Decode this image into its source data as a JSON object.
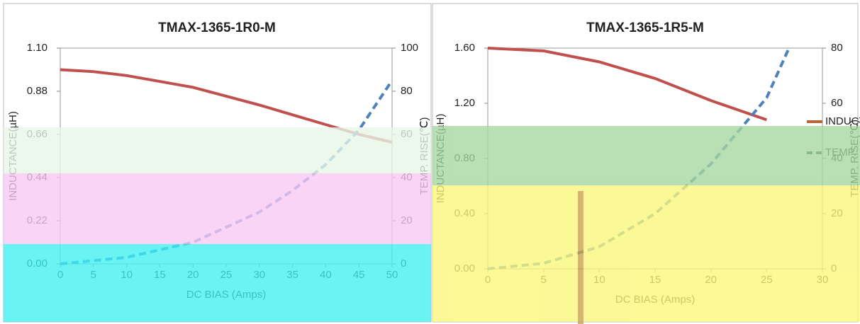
{
  "chart_data": [
    {
      "type": "line",
      "title": "TMAX-1365-1R0-M",
      "x_label": "DC BIAS (Amps)",
      "y_label": "INDUCTANCE(µH)",
      "y2_label": "TEMP. RISE(℃)",
      "xlim": [
        0,
        50
      ],
      "xticks": [
        0,
        5,
        10,
        15,
        20,
        25,
        30,
        35,
        40,
        45,
        50
      ],
      "ylim": [
        0,
        1.1
      ],
      "yticks": [
        {
          "value": 0,
          "label": "0.00"
        },
        {
          "value": 0.22,
          "label": "0.22"
        },
        {
          "value": 0.44,
          "label": "0.44"
        },
        {
          "value": 0.66,
          "label": "0.66"
        },
        {
          "value": 0.88,
          "label": "0.88"
        },
        {
          "value": 1.1,
          "label": "1.10"
        }
      ],
      "y2lim": [
        0,
        100
      ],
      "y2ticks": [
        0,
        20,
        40,
        60,
        80,
        100
      ],
      "series": [
        {
          "name": "INDUCTANCE(µH)",
          "color": "#c0504d",
          "x": [
            0,
            5,
            10,
            20,
            30,
            35,
            40,
            45,
            50
          ],
          "values": [
            0.99,
            0.98,
            0.96,
            0.9,
            0.81,
            0.76,
            0.71,
            0.66,
            0.62
          ]
        },
        {
          "name": "TEMP. RISE(℃)",
          "color": "#4f81bd",
          "axis": "y2",
          "dashed": true,
          "x": [
            0,
            10,
            20,
            30,
            35,
            40,
            45,
            50
          ],
          "values": [
            0,
            3,
            10,
            24,
            34,
            46,
            62,
            85
          ]
        }
      ]
    },
    {
      "type": "line",
      "title": "TMAX-1365-1R5-M",
      "x_label": "DC BIAS (Amps)",
      "y_label": "INDUCTANCE(µH)",
      "y2_label": "TEMP. RISE(℃)",
      "xlim": [
        0,
        30
      ],
      "xticks": [
        0,
        5,
        10,
        15,
        20,
        25,
        30
      ],
      "ylim": [
        0,
        1.6
      ],
      "yticks": [
        {
          "value": 0,
          "label": "0.00"
        },
        {
          "value": 0.4,
          "label": "0.40"
        },
        {
          "value": 0.8,
          "label": "0.80"
        },
        {
          "value": 1.2,
          "label": "1.20"
        },
        {
          "value": 1.6,
          "label": "1.60"
        }
      ],
      "y2lim": [
        0,
        80
      ],
      "y2ticks": [
        0,
        20,
        40,
        60,
        80
      ],
      "series": [
        {
          "name": "INDUCTANCE(µH)",
          "color": "#c0504d",
          "x": [
            0,
            5,
            10,
            15,
            20,
            25
          ],
          "values": [
            1.6,
            1.58,
            1.5,
            1.38,
            1.22,
            1.08
          ]
        },
        {
          "name": "TEMP. RISE(℃)",
          "color": "#4f81bd",
          "axis": "y2",
          "dashed": true,
          "x": [
            0,
            5,
            10,
            15,
            20,
            25,
            27
          ],
          "values": [
            0,
            2,
            8,
            20,
            38,
            62,
            80
          ]
        }
      ]
    }
  ]
}
